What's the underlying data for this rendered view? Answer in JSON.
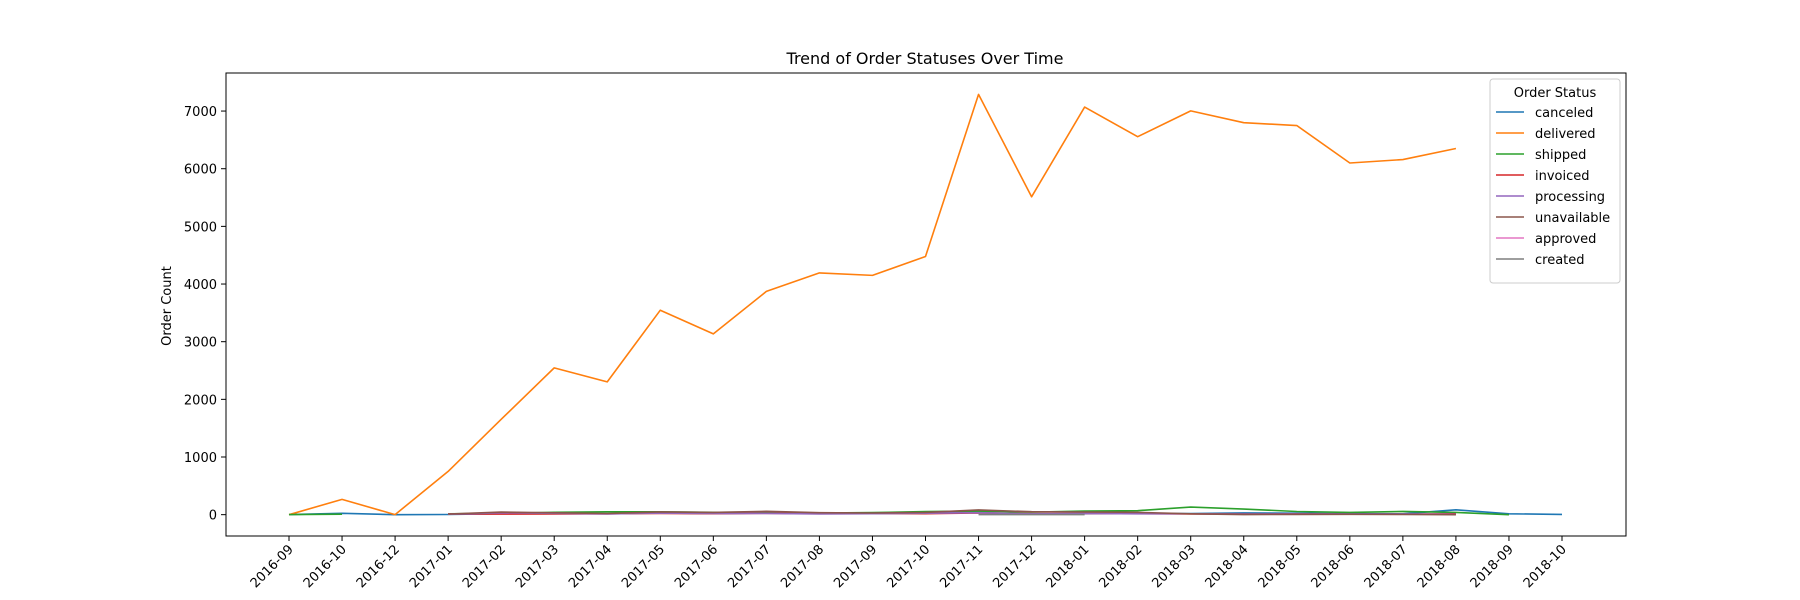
{
  "chart_data": {
    "type": "line",
    "title": "Trend of Order Statuses Over Time",
    "xlabel": "",
    "ylabel": "Order Count",
    "ylim": [
      -370,
      7660
    ],
    "yticks": [
      0,
      1000,
      2000,
      3000,
      4000,
      5000,
      6000,
      7000
    ],
    "grid": false,
    "legend": {
      "title": "Order Status",
      "position": "top-right"
    },
    "x": [
      "2016-09",
      "2016-10",
      "2016-12",
      "2017-01",
      "2017-02",
      "2017-03",
      "2017-04",
      "2017-05",
      "2017-06",
      "2017-07",
      "2017-08",
      "2017-09",
      "2017-10",
      "2017-11",
      "2017-12",
      "2018-01",
      "2018-02",
      "2018-03",
      "2018-04",
      "2018-05",
      "2018-06",
      "2018-07",
      "2018-08",
      "2018-09",
      "2018-10"
    ],
    "series": [
      {
        "name": "canceled",
        "color": "#1f77b4",
        "values": [
          2,
          24,
          0,
          3,
          17,
          33,
          18,
          29,
          16,
          28,
          19,
          23,
          33,
          37,
          10,
          16,
          20,
          20,
          30,
          25,
          17,
          14,
          84,
          15,
          4
        ]
      },
      {
        "name": "delivered",
        "color": "#ff7f0e",
        "values": [
          0,
          265,
          1,
          750,
          1653,
          2546,
          2303,
          3546,
          3135,
          3872,
          4193,
          4150,
          4478,
          7289,
          5513,
          7069,
          6555,
          7003,
          6798,
          6749,
          6099,
          6159,
          6351,
          null,
          null
        ]
      },
      {
        "name": "shipped",
        "color": "#2ca02c",
        "values": [
          1,
          8,
          null,
          16,
          22,
          40,
          50,
          50,
          40,
          44,
          29,
          36,
          54,
          63,
          44,
          63,
          70,
          132,
          98,
          55,
          39,
          56,
          38,
          0,
          null
        ]
      },
      {
        "name": "invoiced",
        "color": "#d62728",
        "values": [
          null,
          18,
          null,
          12,
          11,
          13,
          14,
          22,
          17,
          24,
          17,
          19,
          16,
          30,
          18,
          22,
          17,
          13,
          11,
          12,
          8,
          9,
          14,
          null,
          null
        ]
      },
      {
        "name": "processing",
        "color": "#9467bd",
        "values": [
          null,
          2,
          null,
          9,
          32,
          23,
          13,
          27,
          20,
          22,
          13,
          17,
          26,
          35,
          14,
          22,
          15,
          16,
          9,
          10,
          8,
          10,
          6,
          null,
          null
        ]
      },
      {
        "name": "unavailable",
        "color": "#8c564b",
        "values": [
          null,
          7,
          null,
          10,
          45,
          32,
          20,
          48,
          38,
          58,
          35,
          29,
          38,
          82,
          51,
          46,
          40,
          15,
          2,
          4,
          5,
          3,
          0,
          null,
          null
        ]
      },
      {
        "name": "approved",
        "color": "#e377c2",
        "values": [
          null,
          null,
          null,
          null,
          1,
          null,
          1,
          null,
          null,
          null,
          null,
          null,
          null,
          null,
          null,
          null,
          1,
          null,
          null,
          null,
          null,
          null,
          null,
          null,
          null
        ]
      },
      {
        "name": "created",
        "color": "#7f7f7f",
        "values": [
          null,
          null,
          null,
          null,
          null,
          null,
          null,
          null,
          null,
          null,
          null,
          null,
          null,
          2,
          1,
          2,
          null,
          null,
          null,
          null,
          null,
          null,
          null,
          null,
          null
        ]
      }
    ]
  }
}
